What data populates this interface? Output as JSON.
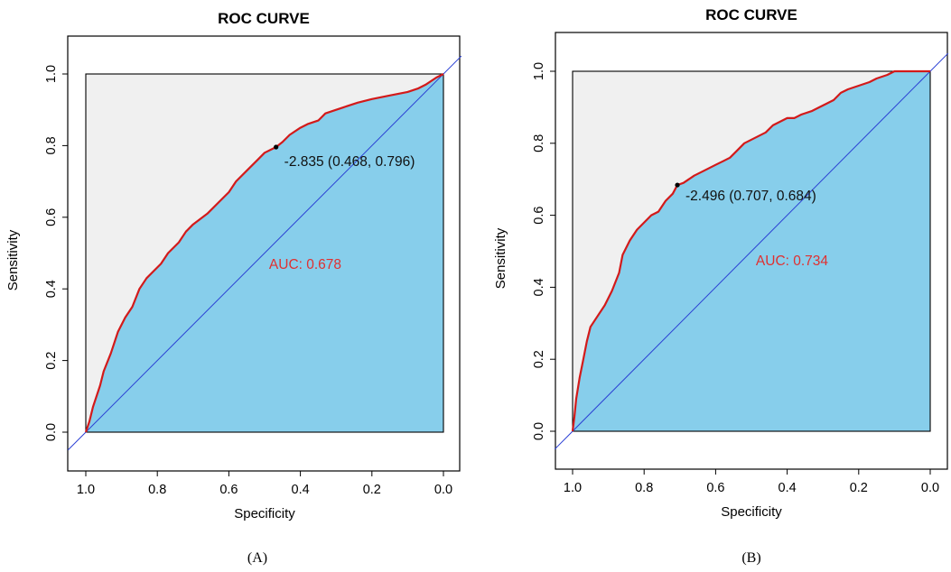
{
  "figure": {
    "colors": {
      "roc_line": "#d31a1a",
      "auc_fill": "#87ceeb",
      "plot_bg": "#f0f0f0",
      "diagonal": "#2a3fd4",
      "auc_text": "#e03030",
      "point": "#000000"
    }
  },
  "chart_data": [
    {
      "type": "line",
      "panel_label": "(A)",
      "title": "ROC CURVE",
      "xlabel": "Specificity",
      "ylabel": "Sensitivity",
      "xlim": [
        1.0,
        0.0
      ],
      "ylim": [
        0.0,
        1.0
      ],
      "x_ticks": [
        "1.0",
        "0.8",
        "0.6",
        "0.4",
        "0.2",
        "0.0"
      ],
      "y_ticks": [
        "0.0",
        "0.2",
        "0.4",
        "0.6",
        "0.8",
        "1.0"
      ],
      "auc_text": "AUC: 0.678",
      "auc": 0.678,
      "threshold_text": "-2.835 (0.468, 0.796)",
      "threshold_point": {
        "threshold": -2.835,
        "specificity": 0.468,
        "sensitivity": 0.796
      },
      "series": [
        {
          "name": "ROC",
          "specificity": [
            1.0,
            0.99,
            0.98,
            0.96,
            0.95,
            0.93,
            0.91,
            0.89,
            0.87,
            0.85,
            0.83,
            0.81,
            0.79,
            0.77,
            0.74,
            0.72,
            0.7,
            0.66,
            0.63,
            0.6,
            0.58,
            0.55,
            0.52,
            0.5,
            0.468,
            0.45,
            0.43,
            0.4,
            0.38,
            0.35,
            0.33,
            0.3,
            0.27,
            0.24,
            0.2,
            0.15,
            0.1,
            0.07,
            0.05,
            0.02,
            0.0
          ],
          "sensitivity": [
            0.0,
            0.03,
            0.07,
            0.13,
            0.17,
            0.22,
            0.28,
            0.32,
            0.35,
            0.4,
            0.43,
            0.45,
            0.47,
            0.5,
            0.53,
            0.56,
            0.58,
            0.61,
            0.64,
            0.67,
            0.7,
            0.73,
            0.76,
            0.78,
            0.796,
            0.81,
            0.83,
            0.85,
            0.86,
            0.87,
            0.89,
            0.9,
            0.91,
            0.92,
            0.93,
            0.94,
            0.95,
            0.96,
            0.97,
            0.99,
            1.0
          ]
        }
      ]
    },
    {
      "type": "line",
      "panel_label": "(B)",
      "title": "ROC CURVE",
      "xlabel": "Specificity",
      "ylabel": "Sensitivity",
      "xlim": [
        1.0,
        0.0
      ],
      "ylim": [
        0.0,
        1.0
      ],
      "x_ticks": [
        "1.0",
        "0.8",
        "0.6",
        "0.4",
        "0.2",
        "0.0"
      ],
      "y_ticks": [
        "0.0",
        "0.2",
        "0.4",
        "0.6",
        "0.8",
        "1.0"
      ],
      "auc_text": "AUC: 0.734",
      "auc": 0.734,
      "threshold_text": "-2.496 (0.707, 0.684)",
      "threshold_point": {
        "threshold": -2.496,
        "specificity": 0.707,
        "sensitivity": 0.684
      },
      "series": [
        {
          "name": "ROC",
          "specificity": [
            1.0,
            0.995,
            0.99,
            0.98,
            0.97,
            0.96,
            0.95,
            0.93,
            0.91,
            0.89,
            0.87,
            0.86,
            0.84,
            0.82,
            0.8,
            0.78,
            0.76,
            0.74,
            0.72,
            0.707,
            0.69,
            0.66,
            0.64,
            0.62,
            0.6,
            0.58,
            0.56,
            0.54,
            0.52,
            0.5,
            0.48,
            0.46,
            0.44,
            0.42,
            0.4,
            0.38,
            0.36,
            0.33,
            0.31,
            0.29,
            0.27,
            0.25,
            0.23,
            0.2,
            0.17,
            0.15,
            0.12,
            0.1,
            0.05,
            0.02,
            0.0
          ],
          "sensitivity": [
            0.0,
            0.04,
            0.09,
            0.15,
            0.2,
            0.25,
            0.29,
            0.32,
            0.35,
            0.39,
            0.44,
            0.49,
            0.53,
            0.56,
            0.58,
            0.6,
            0.61,
            0.64,
            0.66,
            0.684,
            0.69,
            0.71,
            0.72,
            0.73,
            0.74,
            0.75,
            0.76,
            0.78,
            0.8,
            0.81,
            0.82,
            0.83,
            0.85,
            0.86,
            0.87,
            0.87,
            0.88,
            0.89,
            0.9,
            0.91,
            0.92,
            0.94,
            0.95,
            0.96,
            0.97,
            0.98,
            0.99,
            1.0,
            1.0,
            1.0,
            1.0
          ]
        }
      ]
    }
  ]
}
